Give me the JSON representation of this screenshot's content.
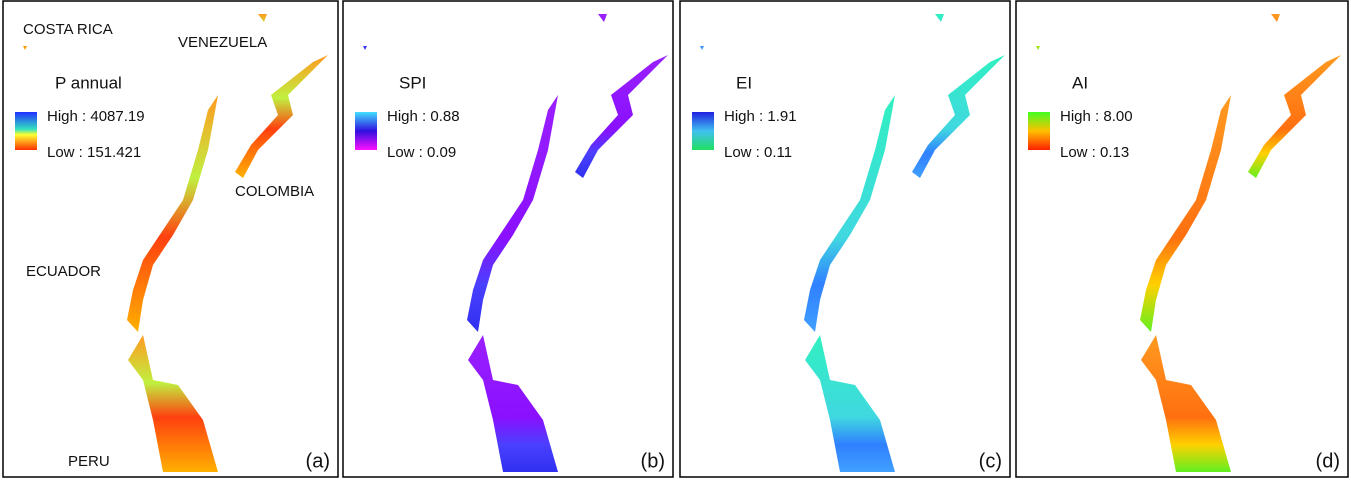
{
  "panels": [
    {
      "label": "(a)",
      "legend": {
        "title": "P annual",
        "high": "High : 4087.19",
        "low": "Low : 151.421"
      },
      "countries": [
        "COSTA RICA",
        "VENEZUELA",
        "COLOMBIA",
        "ECUADOR",
        "PERU"
      ]
    },
    {
      "label": "(b)",
      "legend": {
        "title": "SPI",
        "high": "High : 0.88",
        "low": "Low : 0.09"
      }
    },
    {
      "label": "(c)",
      "legend": {
        "title": "EI",
        "high": "High : 1.91",
        "low": "Low : 0.11"
      }
    },
    {
      "label": "(d)",
      "legend": {
        "title": "AI",
        "high": "High : 8.00",
        "low": "Low : 0.13"
      }
    }
  ]
}
